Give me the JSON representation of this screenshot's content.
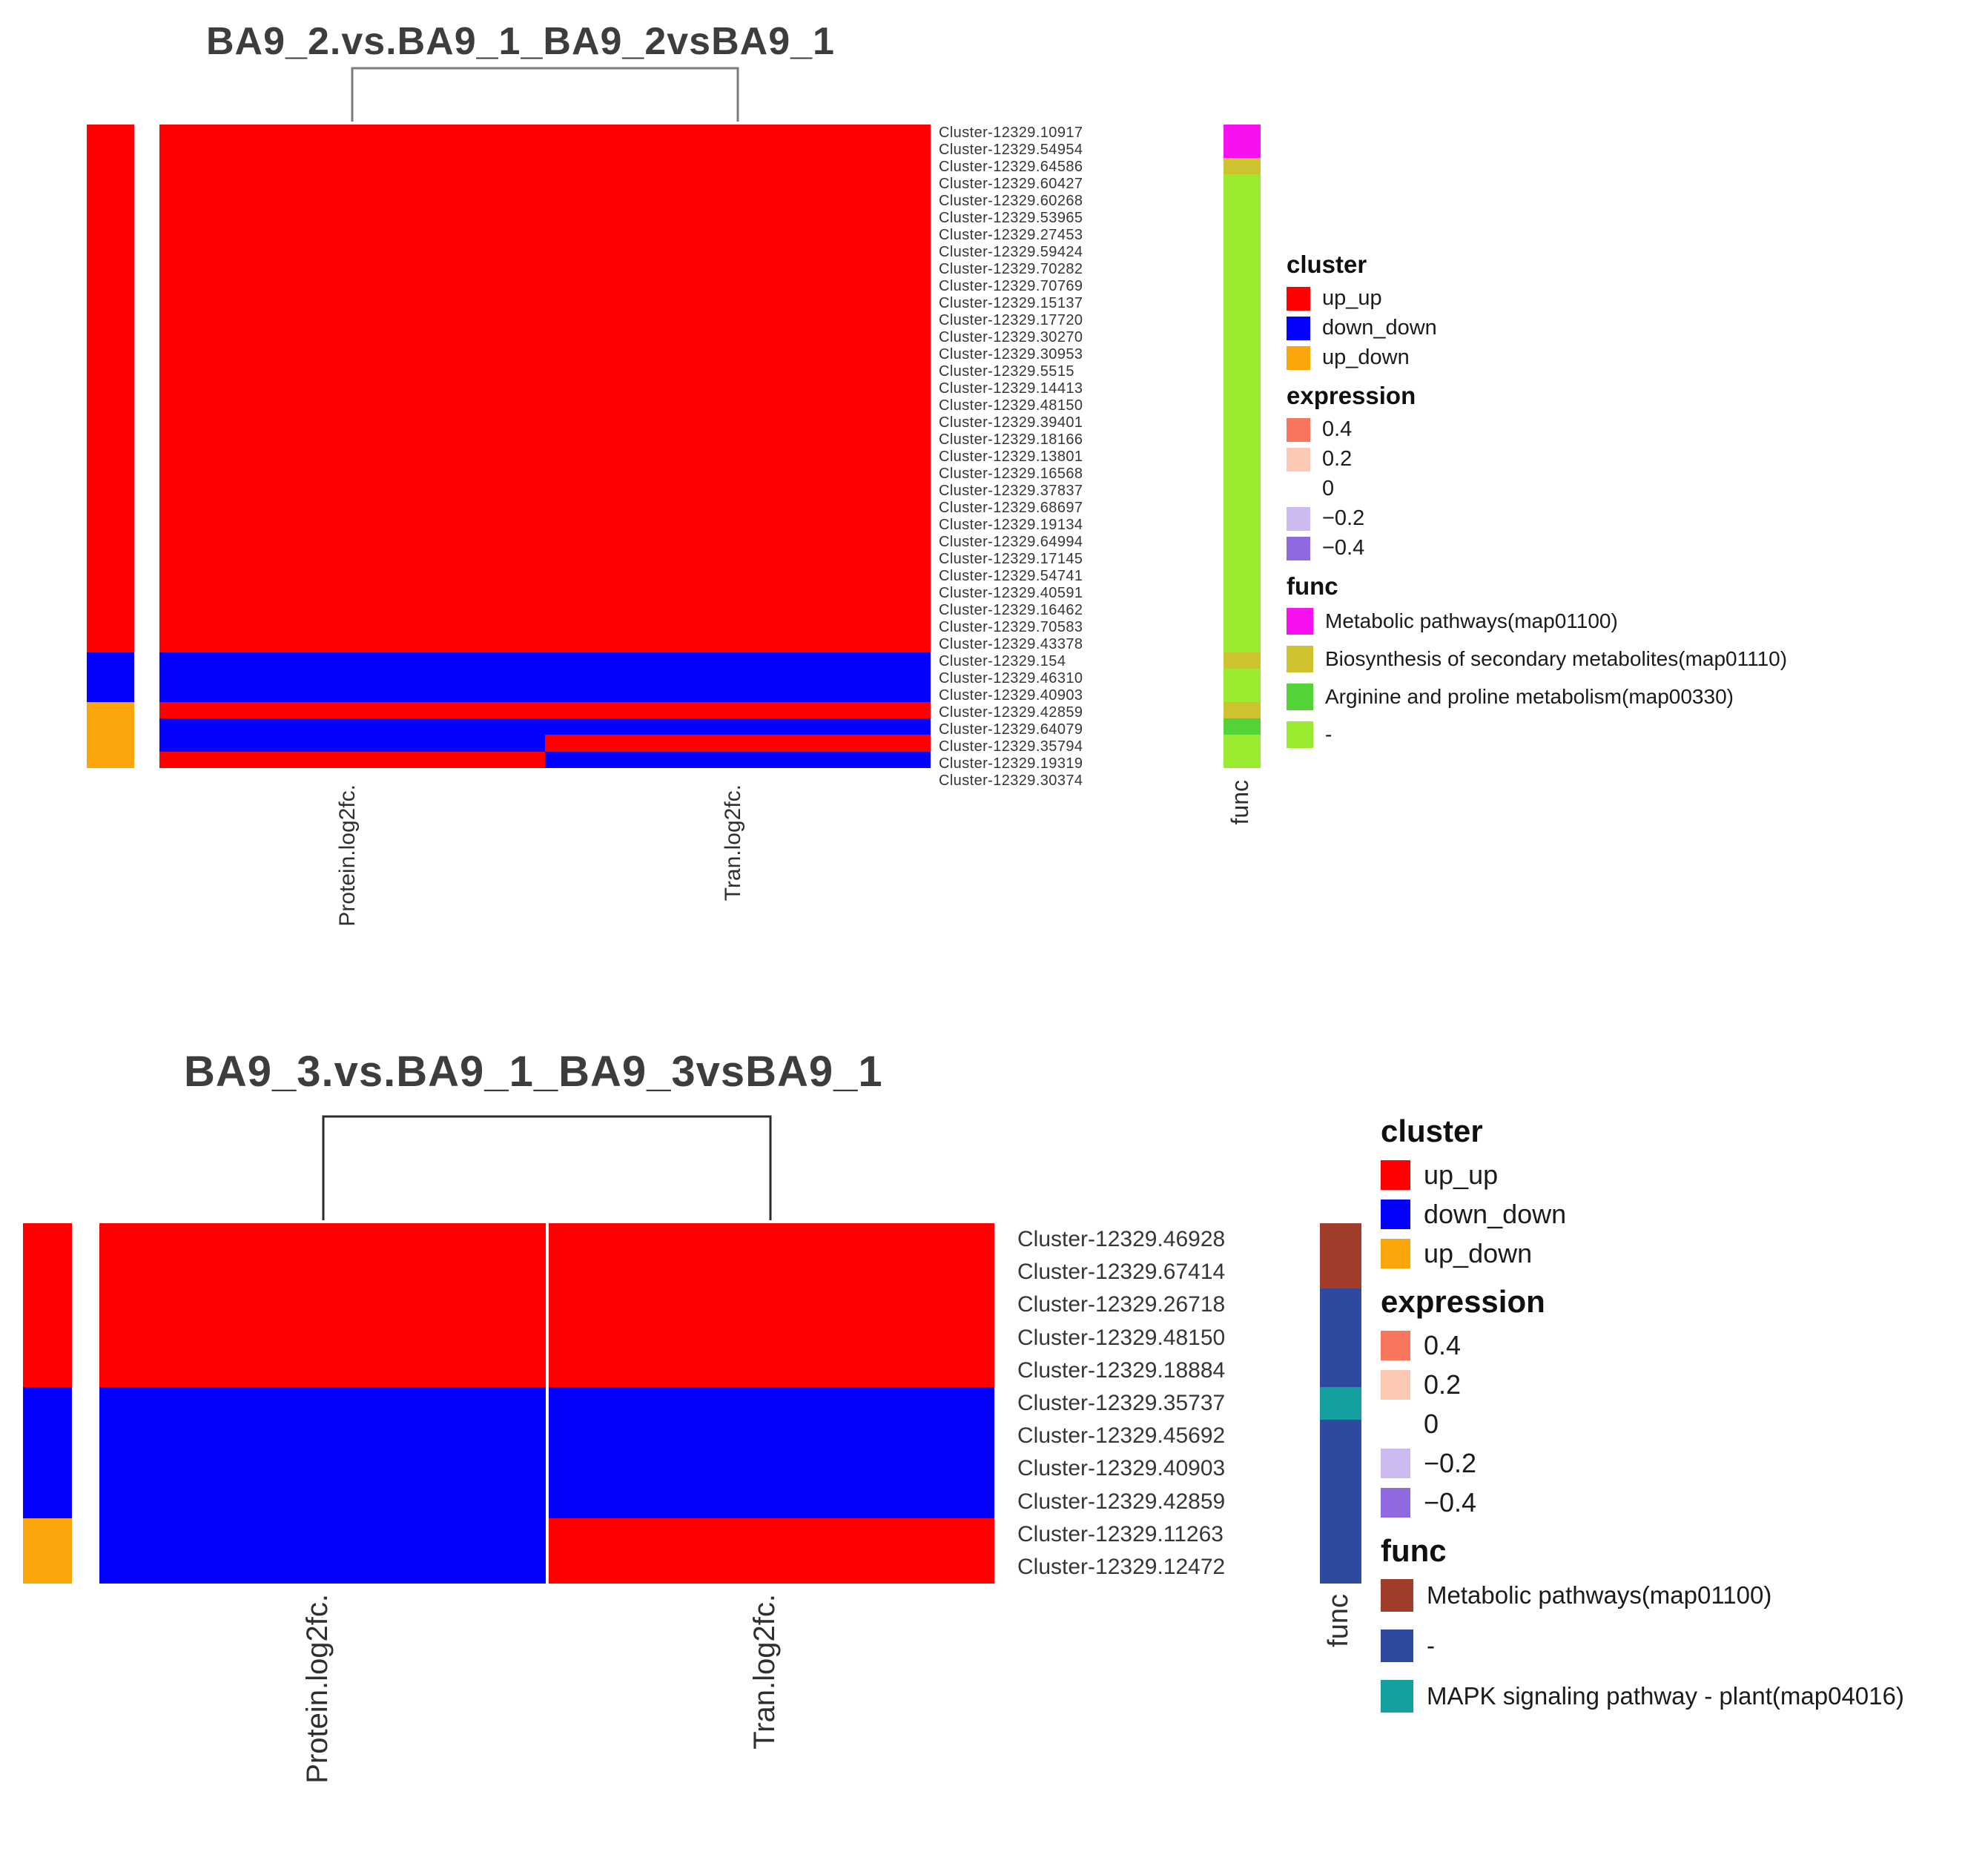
{
  "figure": {
    "background": "#FFFFFF"
  },
  "palette": {
    "cell": {
      "up": "#FE0000",
      "down": "#0402FC"
    },
    "cluster": {
      "up_up": "#FE0000",
      "down_down": "#0402FC",
      "up_down": "#FCA50A"
    }
  },
  "chart_data": [
    {
      "type": "heatmap",
      "title": "BA9_2.vs.BA9_1_BA9_2vsBA9_1",
      "columns": [
        "Protein.log2fc.",
        "Tran.log2fc."
      ],
      "func_axis_label": "func",
      "func_colors": {
        "Metabolic pathways(map01100)": "#F711F1",
        "Biosynthesis of secondary metabolites(map01110)": "#CEC32E",
        "Arginine and proline metabolism(map00330)": "#53D335",
        "-": "#9BEC31"
      },
      "rows": [
        {
          "label": "Cluster-12329.10917",
          "cluster": "up_up",
          "values": [
            "up",
            "up"
          ],
          "func": "Metabolic pathways(map01100)"
        },
        {
          "label": "Cluster-12329.54954",
          "cluster": "up_up",
          "values": [
            "up",
            "up"
          ],
          "func": "Metabolic pathways(map01100)"
        },
        {
          "label": "Cluster-12329.64586",
          "cluster": "up_up",
          "values": [
            "up",
            "up"
          ],
          "func": "Biosynthesis of secondary metabolites(map01110)"
        },
        {
          "label": "Cluster-12329.60427",
          "cluster": "up_up",
          "values": [
            "up",
            "up"
          ],
          "func": "-"
        },
        {
          "label": "Cluster-12329.60268",
          "cluster": "up_up",
          "values": [
            "up",
            "up"
          ],
          "func": "-"
        },
        {
          "label": "Cluster-12329.53965",
          "cluster": "up_up",
          "values": [
            "up",
            "up"
          ],
          "func": "-"
        },
        {
          "label": "Cluster-12329.27453",
          "cluster": "up_up",
          "values": [
            "up",
            "up"
          ],
          "func": "-"
        },
        {
          "label": "Cluster-12329.59424",
          "cluster": "up_up",
          "values": [
            "up",
            "up"
          ],
          "func": "-"
        },
        {
          "label": "Cluster-12329.70282",
          "cluster": "up_up",
          "values": [
            "up",
            "up"
          ],
          "func": "-"
        },
        {
          "label": "Cluster-12329.70769",
          "cluster": "up_up",
          "values": [
            "up",
            "up"
          ],
          "func": "-"
        },
        {
          "label": "Cluster-12329.15137",
          "cluster": "up_up",
          "values": [
            "up",
            "up"
          ],
          "func": "-"
        },
        {
          "label": "Cluster-12329.17720",
          "cluster": "up_up",
          "values": [
            "up",
            "up"
          ],
          "func": "-"
        },
        {
          "label": "Cluster-12329.30270",
          "cluster": "up_up",
          "values": [
            "up",
            "up"
          ],
          "func": "-"
        },
        {
          "label": "Cluster-12329.30953",
          "cluster": "up_up",
          "values": [
            "up",
            "up"
          ],
          "func": "-"
        },
        {
          "label": "Cluster-12329.5515",
          "cluster": "up_up",
          "values": [
            "up",
            "up"
          ],
          "func": "-"
        },
        {
          "label": "Cluster-12329.14413",
          "cluster": "up_up",
          "values": [
            "up",
            "up"
          ],
          "func": "-"
        },
        {
          "label": "Cluster-12329.48150",
          "cluster": "up_up",
          "values": [
            "up",
            "up"
          ],
          "func": "-"
        },
        {
          "label": "Cluster-12329.39401",
          "cluster": "up_up",
          "values": [
            "up",
            "up"
          ],
          "func": "-"
        },
        {
          "label": "Cluster-12329.18166",
          "cluster": "up_up",
          "values": [
            "up",
            "up"
          ],
          "func": "-"
        },
        {
          "label": "Cluster-12329.13801",
          "cluster": "up_up",
          "values": [
            "up",
            "up"
          ],
          "func": "-"
        },
        {
          "label": "Cluster-12329.16568",
          "cluster": "up_up",
          "values": [
            "up",
            "up"
          ],
          "func": "-"
        },
        {
          "label": "Cluster-12329.37837",
          "cluster": "up_up",
          "values": [
            "up",
            "up"
          ],
          "func": "-"
        },
        {
          "label": "Cluster-12329.68697",
          "cluster": "up_up",
          "values": [
            "up",
            "up"
          ],
          "func": "-"
        },
        {
          "label": "Cluster-12329.19134",
          "cluster": "up_up",
          "values": [
            "up",
            "up"
          ],
          "func": "-"
        },
        {
          "label": "Cluster-12329.64994",
          "cluster": "up_up",
          "values": [
            "up",
            "up"
          ],
          "func": "-"
        },
        {
          "label": "Cluster-12329.17145",
          "cluster": "up_up",
          "values": [
            "up",
            "up"
          ],
          "func": "-"
        },
        {
          "label": "Cluster-12329.54741",
          "cluster": "up_up",
          "values": [
            "up",
            "up"
          ],
          "func": "-"
        },
        {
          "label": "Cluster-12329.40591",
          "cluster": "up_up",
          "values": [
            "up",
            "up"
          ],
          "func": "-"
        },
        {
          "label": "Cluster-12329.16462",
          "cluster": "up_up",
          "values": [
            "up",
            "up"
          ],
          "func": "-"
        },
        {
          "label": "Cluster-12329.70583",
          "cluster": "up_up",
          "values": [
            "up",
            "up"
          ],
          "func": "-"
        },
        {
          "label": "Cluster-12329.43378",
          "cluster": "up_up",
          "values": [
            "up",
            "up"
          ],
          "func": "-"
        },
        {
          "label": "Cluster-12329.154",
          "cluster": "up_up",
          "values": [
            "up",
            "up"
          ],
          "func": "-"
        },
        {
          "label": "Cluster-12329.46310",
          "cluster": "down_down",
          "values": [
            "down",
            "down"
          ],
          "func": "Biosynthesis of secondary metabolites(map01110)"
        },
        {
          "label": "Cluster-12329.40903",
          "cluster": "down_down",
          "values": [
            "down",
            "down"
          ],
          "func": "-"
        },
        {
          "label": "Cluster-12329.42859",
          "cluster": "down_down",
          "values": [
            "down",
            "down"
          ],
          "func": "-"
        },
        {
          "label": "Cluster-12329.64079",
          "cluster": "up_down",
          "values": [
            "up",
            "up"
          ],
          "func": "Biosynthesis of secondary metabolites(map01110)"
        },
        {
          "label": "Cluster-12329.35794",
          "cluster": "up_down",
          "values": [
            "down",
            "down"
          ],
          "func": "Arginine and proline metabolism(map00330)"
        },
        {
          "label": "Cluster-12329.19319",
          "cluster": "up_down",
          "values": [
            "down",
            "up"
          ],
          "func": "-"
        },
        {
          "label": "Cluster-12329.30374",
          "cluster": "up_down",
          "values": [
            "up",
            "down"
          ],
          "func": "-"
        }
      ],
      "legend": {
        "cluster_title": "cluster",
        "cluster_items": [
          {
            "label": "up_up",
            "color": "#FE0000"
          },
          {
            "label": "down_down",
            "color": "#0402FC"
          },
          {
            "label": "up_down",
            "color": "#FCA50A"
          }
        ],
        "expression_title": "expression",
        "expression_items": [
          {
            "label": "0.4",
            "color": "#F8765C"
          },
          {
            "label": "0.2",
            "color": "#FBC9B4"
          },
          {
            "label": "0",
            "color": "#FFFFFF"
          },
          {
            "label": "−0.2",
            "color": "#CDBAF1"
          },
          {
            "label": "−0.4",
            "color": "#8F69E0"
          }
        ],
        "func_title": "func",
        "func_items": [
          {
            "label": "Metabolic pathways(map01100)",
            "color": "#F711F1"
          },
          {
            "label": "Biosynthesis of secondary metabolites(map01110)",
            "color": "#CEC32E"
          },
          {
            "label": "Arginine and proline metabolism(map00330)",
            "color": "#53D335"
          },
          {
            "label": "-",
            "color": "#9BEC31"
          }
        ]
      }
    },
    {
      "type": "heatmap",
      "title": "BA9_3.vs.BA9_1_BA9_3vsBA9_1",
      "columns": [
        "Protein.log2fc.",
        "Tran.log2fc."
      ],
      "func_axis_label": "func",
      "func_colors": {
        "Metabolic pathways(map01100)": "#A23C2A",
        "-": "#2E4A9E",
        "MAPK signaling pathway - plant(map04016)": "#14A0A0"
      },
      "rows": [
        {
          "label": "Cluster-12329.46928",
          "cluster": "up_up",
          "values": [
            "up",
            "up"
          ],
          "func": "Metabolic pathways(map01100)"
        },
        {
          "label": "Cluster-12329.67414",
          "cluster": "up_up",
          "values": [
            "up",
            "up"
          ],
          "func": "Metabolic pathways(map01100)"
        },
        {
          "label": "Cluster-12329.26718",
          "cluster": "up_up",
          "values": [
            "up",
            "up"
          ],
          "func": "-"
        },
        {
          "label": "Cluster-12329.48150",
          "cluster": "up_up",
          "values": [
            "up",
            "up"
          ],
          "func": "-"
        },
        {
          "label": "Cluster-12329.18884",
          "cluster": "up_up",
          "values": [
            "up",
            "up"
          ],
          "func": "-"
        },
        {
          "label": "Cluster-12329.35737",
          "cluster": "down_down",
          "values": [
            "down",
            "down"
          ],
          "func": "MAPK signaling pathway - plant(map04016)"
        },
        {
          "label": "Cluster-12329.45692",
          "cluster": "down_down",
          "values": [
            "down",
            "down"
          ],
          "func": "-"
        },
        {
          "label": "Cluster-12329.40903",
          "cluster": "down_down",
          "values": [
            "down",
            "down"
          ],
          "func": "-"
        },
        {
          "label": "Cluster-12329.42859",
          "cluster": "down_down",
          "values": [
            "down",
            "down"
          ],
          "func": "-"
        },
        {
          "label": "Cluster-12329.11263",
          "cluster": "up_down",
          "values": [
            "down",
            "up"
          ],
          "func": "-"
        },
        {
          "label": "Cluster-12329.12472",
          "cluster": "up_down",
          "values": [
            "down",
            "up"
          ],
          "func": "-"
        }
      ],
      "legend": {
        "cluster_title": "cluster",
        "cluster_items": [
          {
            "label": "up_up",
            "color": "#FE0000"
          },
          {
            "label": "down_down",
            "color": "#0402FC"
          },
          {
            "label": "up_down",
            "color": "#FCA50A"
          }
        ],
        "expression_title": "expression",
        "expression_items": [
          {
            "label": "0.4",
            "color": "#F8765C"
          },
          {
            "label": "0.2",
            "color": "#FBC9B4"
          },
          {
            "label": "0",
            "color": "#FFFFFF"
          },
          {
            "label": "−0.2",
            "color": "#CDBAF1"
          },
          {
            "label": "−0.4",
            "color": "#8F69E0"
          }
        ],
        "func_title": "func",
        "func_items": [
          {
            "label": "Metabolic pathways(map01100)",
            "color": "#A23C2A"
          },
          {
            "label": "-",
            "color": "#2E4A9E"
          },
          {
            "label": "MAPK signaling pathway - plant(map04016)",
            "color": "#14A0A0"
          }
        ]
      }
    }
  ]
}
